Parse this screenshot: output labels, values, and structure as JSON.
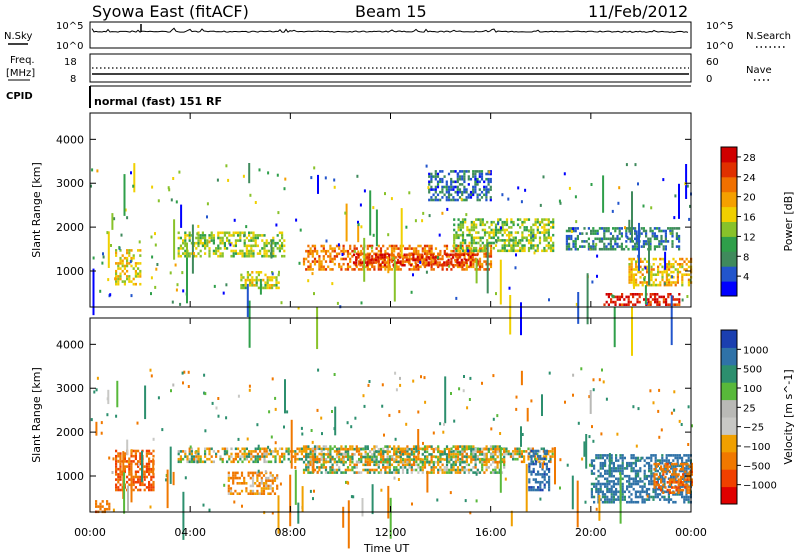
{
  "header": {
    "station": "Syowa East (fitACF)",
    "beam": "Beam 15",
    "date": "11/Feb/2012"
  },
  "top_panels": {
    "nsky_label": "N.Sky",
    "nsearch_label": "N.Search",
    "nsky_ticks": [
      "10^5",
      "10^0"
    ],
    "freq_label_1": "Freq.",
    "freq_label_2": "[MHz]",
    "freq_ticks": [
      "18",
      "8"
    ],
    "nave_ticks": [
      "60",
      "0"
    ],
    "nave_label": "Nave",
    "cpid_label": "CPID",
    "cpid_value": "normal (fast) 151 RF"
  },
  "chart_data": [
    {
      "type": "heatmap",
      "title": "",
      "xlabel": "Time UT",
      "ylabel": "Slant Range [km]",
      "x_ticks": [
        "00:00",
        "04:00",
        "08:00",
        "12:00",
        "16:00",
        "20:00",
        "00:00"
      ],
      "xlim_hours": [
        0,
        24
      ],
      "y_ticks": [
        1000,
        2000,
        3000,
        4000
      ],
      "ylim": [
        180,
        4600
      ],
      "colorbar": {
        "label": "Power [dB]",
        "ticks": [
          4,
          8,
          12,
          16,
          20,
          24,
          28
        ],
        "range": [
          0,
          30
        ],
        "colors": [
          "#0000ff",
          "#2255cc",
          "#3f8a5c",
          "#2f9f4a",
          "#88c22a",
          "#f0d000",
          "#f5a000",
          "#f07000",
          "#e03000",
          "#d00000"
        ]
      },
      "bands": [
        {
          "t0": 3.5,
          "t1": 7.8,
          "r0": 1350,
          "r1": 1900,
          "value": 14
        },
        {
          "t0": 8.5,
          "t1": 16.0,
          "r0": 1050,
          "r1": 1600,
          "value": 22
        },
        {
          "t0": 10.5,
          "t1": 15.5,
          "r0": 1150,
          "r1": 1400,
          "value": 26
        },
        {
          "t0": 14.5,
          "t1": 18.5,
          "r0": 1450,
          "r1": 2200,
          "value": 13
        },
        {
          "t0": 19.0,
          "t1": 23.5,
          "r0": 1500,
          "r1": 2000,
          "value": 7
        },
        {
          "t0": 21.5,
          "t1": 24.0,
          "r0": 700,
          "r1": 1300,
          "value": 18
        },
        {
          "t0": 20.5,
          "t1": 23.5,
          "r0": 250,
          "r1": 500,
          "value": 27
        },
        {
          "t0": 1.0,
          "t1": 2.0,
          "r0": 700,
          "r1": 1500,
          "value": 17
        },
        {
          "t0": 13.5,
          "t1": 16.0,
          "r0": 2600,
          "r1": 3300,
          "value": 6
        },
        {
          "t0": 6.0,
          "t1": 7.5,
          "r0": 600,
          "r1": 1000,
          "value": 15
        }
      ]
    },
    {
      "type": "heatmap",
      "title": "",
      "xlabel": "Time UT",
      "ylabel": "Slant Range [km]",
      "x_ticks": [
        "00:00",
        "04:00",
        "08:00",
        "12:00",
        "16:00",
        "20:00",
        "00:00"
      ],
      "xlim_hours": [
        0,
        24
      ],
      "y_ticks": [
        1000,
        2000,
        3000,
        4000
      ],
      "ylim": [
        180,
        4600
      ],
      "colorbar": {
        "label": "Velocity [m s^-1]",
        "ticks": [
          "1000",
          "500",
          "100",
          "25",
          "−25",
          "−100",
          "−500",
          "−1000"
        ],
        "colors": [
          "#1b3fb0",
          "#2f72a8",
          "#2c8f6e",
          "#58b83a",
          "#b9b9b6",
          "#c8c8c5",
          "#f0a000",
          "#f07800",
          "#f04000",
          "#e00000"
        ]
      },
      "bands": [
        {
          "t0": 3.5,
          "t1": 18.5,
          "r0": 1350,
          "r1": 1650,
          "value": 0
        },
        {
          "t0": 8.5,
          "t1": 16.5,
          "r0": 1050,
          "r1": 1700,
          "value": 0
        },
        {
          "t0": 1.0,
          "t1": 2.5,
          "r0": 700,
          "r1": 1600,
          "value": -400
        },
        {
          "t0": 0.2,
          "t1": 0.8,
          "r0": 200,
          "r1": 450,
          "value": -300
        },
        {
          "t0": 5.5,
          "t1": 7.5,
          "r0": 600,
          "r1": 1100,
          "value": -150
        },
        {
          "t0": 17.5,
          "t1": 18.3,
          "r0": 700,
          "r1": 1600,
          "value": 600
        },
        {
          "t0": 20.0,
          "t1": 24.0,
          "r0": 400,
          "r1": 1500,
          "value": 400
        },
        {
          "t0": 22.5,
          "t1": 24.0,
          "r0": 600,
          "r1": 1300,
          "value": -300
        }
      ]
    }
  ]
}
